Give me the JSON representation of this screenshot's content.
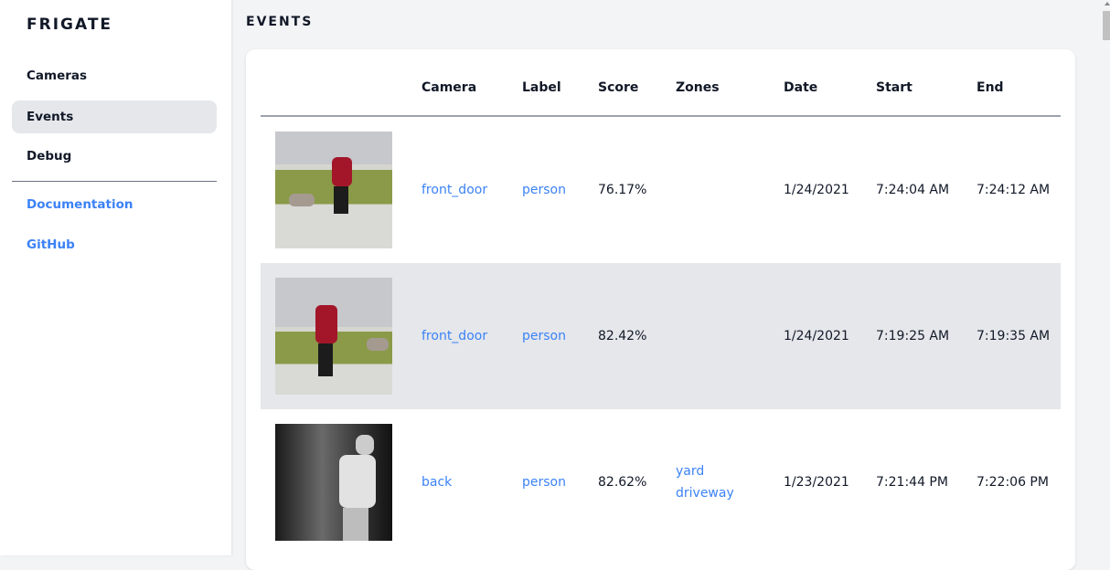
{
  "brand": "FRIGATE",
  "sidebar": {
    "items": [
      {
        "label": "Cameras"
      },
      {
        "label": "Events",
        "active": true
      },
      {
        "label": "Debug"
      }
    ],
    "links": [
      {
        "label": "Documentation"
      },
      {
        "label": "GitHub"
      }
    ]
  },
  "page_title": "EVENTS",
  "table": {
    "headers": [
      "Camera",
      "Label",
      "Score",
      "Zones",
      "Date",
      "Start",
      "End"
    ],
    "rows": [
      {
        "camera": "front_door",
        "label": "person",
        "score": "76.17%",
        "zones": [],
        "date": "1/24/2021",
        "start": "7:24:04 AM",
        "end": "7:24:12 AM"
      },
      {
        "camera": "front_door",
        "label": "person",
        "score": "82.42%",
        "zones": [],
        "date": "1/24/2021",
        "start": "7:19:25 AM",
        "end": "7:19:35 AM"
      },
      {
        "camera": "back",
        "label": "person",
        "score": "82.62%",
        "zones": [
          "yard",
          "driveway"
        ],
        "date": "1/23/2021",
        "start": "7:21:44 PM",
        "end": "7:22:06 PM"
      }
    ]
  },
  "colors": {
    "accent": "#3b82f6",
    "active_bg": "#e5e7eb",
    "page_bg": "#f3f4f6"
  }
}
